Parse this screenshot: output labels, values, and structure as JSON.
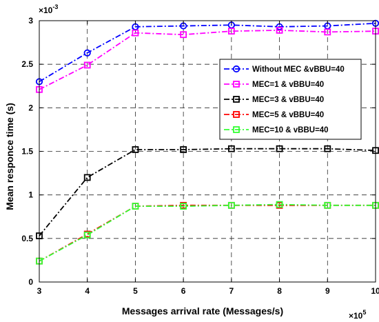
{
  "chart_data": {
    "type": "line",
    "xlabel": "Messages arrival rate (Messages/s)",
    "ylabel": "Mean responce time (s)",
    "x_exponent": {
      "base": "×10",
      "power": "5"
    },
    "y_exponent": {
      "base": "×10",
      "power": "-3"
    },
    "xlim": [
      3,
      10
    ],
    "ylim": [
      0,
      3
    ],
    "xticks": [
      3,
      4,
      5,
      6,
      7,
      8,
      9,
      10
    ],
    "xtick_labels": [
      "3",
      "4",
      "5",
      "6",
      "7",
      "8",
      "9",
      "10"
    ],
    "yticks": [
      0,
      0.5,
      1,
      1.5,
      2,
      2.5,
      3
    ],
    "ytick_labels": [
      "0",
      "0.5",
      "1",
      "1.5",
      "2",
      "2.5",
      "3"
    ],
    "grid": true,
    "grid_style": "dashed",
    "legend_position": "right",
    "x": [
      3,
      4,
      5,
      6,
      7,
      8,
      9,
      10
    ],
    "series": [
      {
        "name": "Without MEC &vBBU=40",
        "color": "#0000ff",
        "marker": "circle",
        "line_style": "dash-dot",
        "values": [
          2.3,
          2.63,
          2.93,
          2.94,
          2.95,
          2.93,
          2.94,
          2.97
        ]
      },
      {
        "name": "MEC=1 & vBBU=40",
        "color": "#ff00ff",
        "marker": "square",
        "line_style": "dash-dot",
        "values": [
          2.21,
          2.49,
          2.86,
          2.84,
          2.88,
          2.89,
          2.87,
          2.88
        ]
      },
      {
        "name": "MEC=3 & vBBU=40",
        "color": "#000000",
        "marker": "square",
        "line_style": "dash-dot",
        "values": [
          0.53,
          1.2,
          1.52,
          1.52,
          1.53,
          1.53,
          1.53,
          1.51
        ]
      },
      {
        "name": "MEC=5 & vBBU=40",
        "color": "#ff0000",
        "marker": "square",
        "line_style": "dash-dot",
        "values": [
          0.24,
          0.55,
          0.87,
          0.88,
          0.88,
          0.88,
          0.88,
          0.88
        ]
      },
      {
        "name": "MEC=10 & vBBU=40",
        "color": "#33ff33",
        "marker": "square",
        "line_style": "dash-dot",
        "values": [
          0.24,
          0.54,
          0.87,
          0.87,
          0.88,
          0.89,
          0.88,
          0.88
        ]
      }
    ]
  }
}
